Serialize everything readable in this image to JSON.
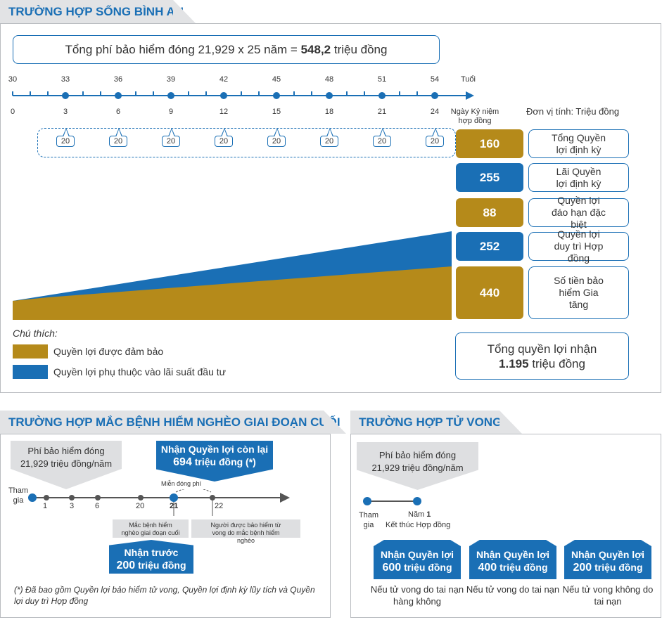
{
  "section1": {
    "title": "TRƯỜNG HỢP SỐNG BÌNH AN",
    "premium_text": "Tổng phí bảo hiểm đóng 21,929 x 25 năm = ",
    "premium_total": "548,2",
    "premium_unit": " triệu đồng",
    "ages": [
      "30",
      "33",
      "36",
      "39",
      "42",
      "45",
      "48",
      "51",
      "54"
    ],
    "age_unit": "Tuổi",
    "years": [
      "0",
      "3",
      "6",
      "9",
      "12",
      "15",
      "18",
      "21",
      "24"
    ],
    "anniversary": "Ngày Kỷ niệm hợp đồng",
    "unit_note": "Đơn vị tính: Triệu đồng",
    "callout_value": "20",
    "benefits": [
      {
        "value": "160",
        "label": "Tổng Quyền lợi định kỳ",
        "color": "gold"
      },
      {
        "value": "255",
        "label": "Lãi Quyền lợi định kỳ",
        "color": "blue"
      },
      {
        "value": "88",
        "label": "Quyền lợi đáo hạn đặc biệt",
        "color": "gold"
      },
      {
        "value": "252",
        "label": "Quyền lợi duy trì Hợp đồng",
        "color": "blue"
      },
      {
        "value": "440",
        "label": "Số tiền bảo hiểm Gia tăng",
        "color": "gold"
      }
    ],
    "legend_title": "Chú thích:",
    "legend_gold": "Quyền lợi được đảm bảo",
    "legend_blue": "Quyền lợi phụ thuộc vào lãi suất đầu tư",
    "total_label": "Tổng quyền lợi nhận",
    "total_value": "1.195",
    "total_unit": " triệu đồng"
  },
  "section2": {
    "title": "TRƯỜNG HỢP MẮC BỆNH HIỂM NGHÈO GIAI ĐOẠN CUỐI",
    "premium_line1": "Phí bảo hiểm đóng",
    "premium_line2": "21,929 triệu đồng/năm",
    "remaining_line1": "Nhận Quyền lợi còn lại",
    "remaining_value": "694",
    "remaining_unit": " triệu đồng (*)",
    "join_label": "Tham gia",
    "timeline": [
      "1",
      "3",
      "6",
      "20",
      "21",
      "22"
    ],
    "waive_label": "Miễn đóng phí",
    "illness_note": "Mắc bệnh hiểm nghèo giai đoạn cuối",
    "death_note": "Người được bảo hiểm từ vong do mắc bệnh hiểm nghèo",
    "advance_line1": "Nhận trước",
    "advance_value": "200",
    "advance_unit": " triệu đồng",
    "footnote": "(*) Đã bao gồm Quyền lợi bảo hiểm tử vong, Quyền lợi định kỳ lũy tích và Quyền lợi duy trì Hợp đồng"
  },
  "section3": {
    "title": "TRƯỜNG HỢP TỬ VONG",
    "premium_line1": "Phí bảo hiểm đóng",
    "premium_line2": "21,929 triệu đồng/năm",
    "join_label": "Tham gia",
    "end_year": "Năm ",
    "end_year_num": "1",
    "end_label": "Kết thúc Hợp đồng",
    "cards": [
      {
        "head": "Nhận Quyền lợi",
        "value": "600",
        "unit": " triệu đồng",
        "caption": "Nếu tử vong do tai nạn hàng không"
      },
      {
        "head": "Nhận Quyền lợi",
        "value": "400",
        "unit": " triệu đồng",
        "caption": "Nếu tử vong do tai nạn"
      },
      {
        "head": "Nhận Quyền lợi",
        "value": "200",
        "unit": " triệu đồng",
        "caption": "Nếu tử vong không do tai nạn"
      }
    ]
  },
  "colors": {
    "gold": "#b58a1a",
    "blue": "#1a6fb5",
    "gray": "#dedfe1"
  }
}
